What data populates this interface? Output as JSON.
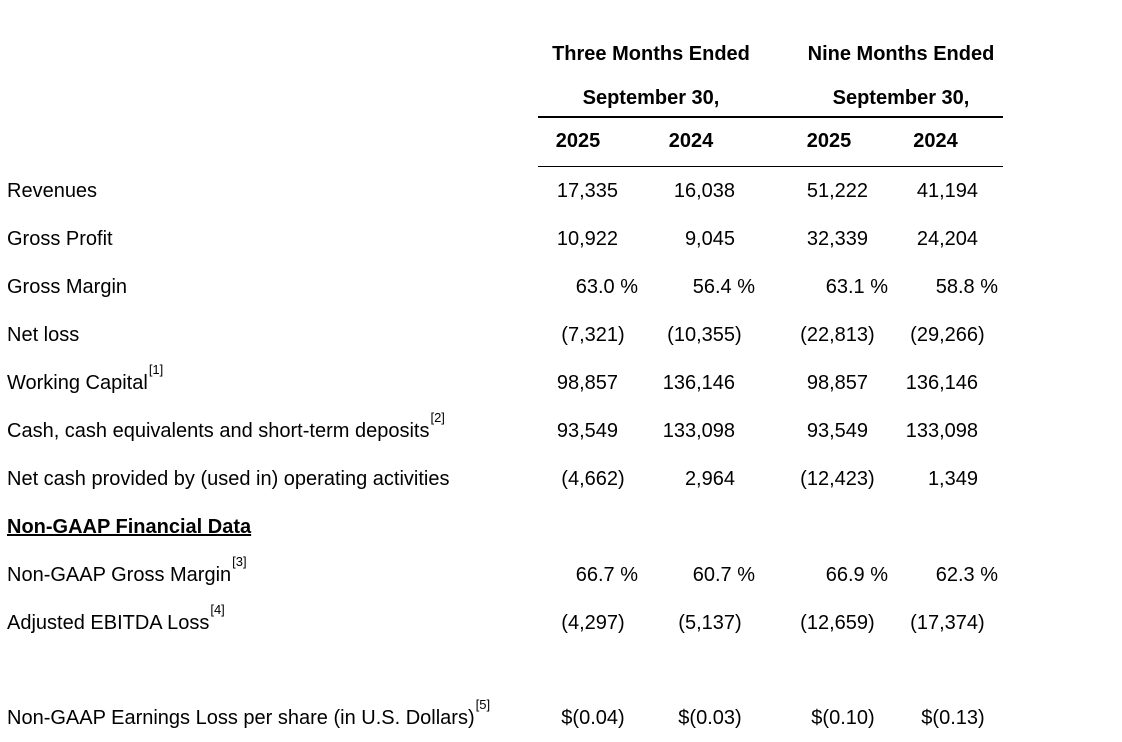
{
  "colors": {
    "text": "#000000",
    "background": "#ffffff",
    "rule": "#000000"
  },
  "table": {
    "col_groups": [
      {
        "line1": "Three Months Ended",
        "line2": "September 30,"
      },
      {
        "line1": "Nine Months Ended",
        "line2": "September 30,"
      }
    ],
    "year_columns": [
      "2025",
      "2024",
      "2025",
      "2024"
    ],
    "rows": [
      {
        "label": "Revenues",
        "sup": "",
        "values": [
          "17,335",
          "16,038",
          "51,222",
          "41,194"
        ]
      },
      {
        "label": "Gross Profit",
        "sup": "",
        "values": [
          "10,922",
          "9,045",
          "32,339",
          "24,204"
        ]
      },
      {
        "label": "Gross Margin",
        "sup": "",
        "values": [
          "63.0 %",
          "56.4 %",
          "63.1 %",
          "58.8 %"
        ]
      },
      {
        "label": "Net loss",
        "sup": "",
        "values": [
          "(7,321)",
          "(10,355)",
          "(22,813)",
          "(29,266)"
        ]
      },
      {
        "label": "Working Capital",
        "sup": "[1]",
        "values": [
          "98,857",
          "136,146",
          "98,857",
          "136,146"
        ]
      },
      {
        "label": "Cash, cash equivalents and short-term deposits",
        "sup": "[2]",
        "values": [
          "93,549",
          "133,098",
          "93,549",
          "133,098"
        ]
      },
      {
        "label": "Net cash provided by (used in) operating activities",
        "sup": "",
        "values": [
          "(4,662)",
          "2,964",
          "(12,423)",
          "1,349"
        ]
      },
      {
        "label": "Non-GAAP Financial Data",
        "sup": "",
        "section_header": true,
        "values": [
          "",
          "",
          "",
          ""
        ]
      },
      {
        "label": "Non-GAAP Gross Margin",
        "sup": "[3]",
        "values": [
          "66.7 %",
          "60.7 %",
          "66.9 %",
          "62.3 %"
        ]
      },
      {
        "label": "Adjusted EBITDA Loss",
        "sup": "[4]",
        "values": [
          "(4,297)",
          "(5,137)",
          "(12,659)",
          "(17,374)"
        ]
      },
      {
        "label": "Non-GAAP Earnings Loss per share (in U.S. Dollars)",
        "sup": "[5]",
        "spacer_before": true,
        "values": [
          "$(0.04)",
          "$(0.03)",
          "$(0.10)",
          "$(0.13)"
        ]
      }
    ]
  }
}
